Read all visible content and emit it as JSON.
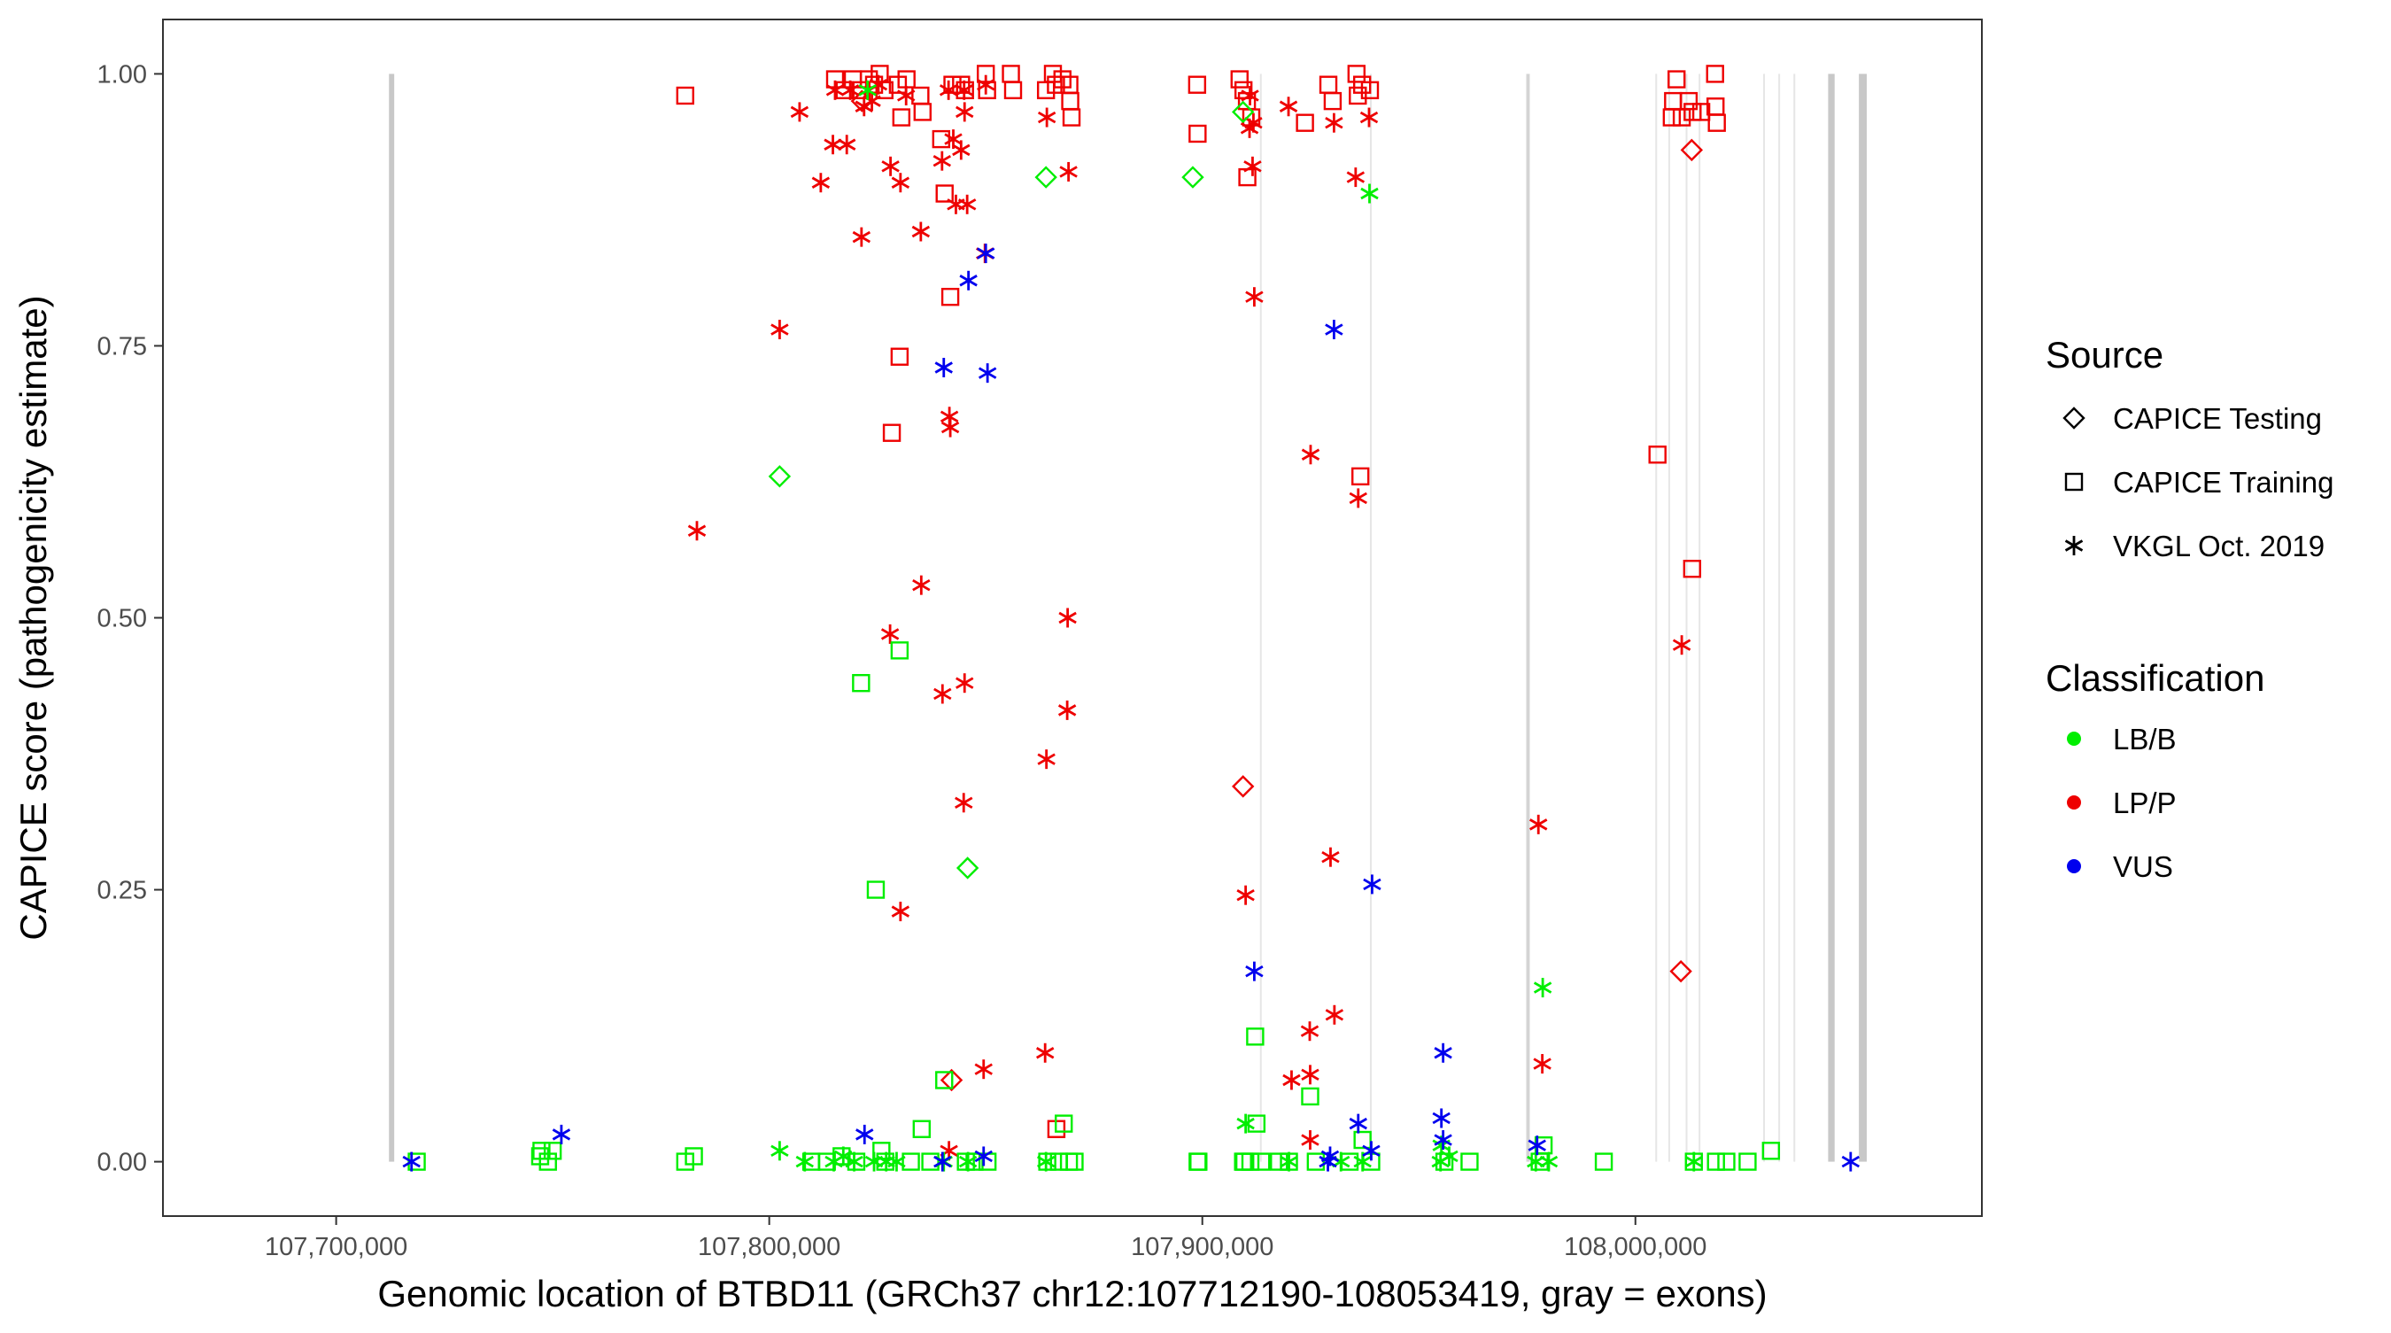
{
  "chart_data": {
    "type": "scatter",
    "xlabel": "Genomic location of BTBD11 (GRCh37 chr12:107712190-108053419, gray = exons)",
    "ylabel": "CAPICE score (pathogenicity estimate)",
    "xlim": [
      107660000,
      108080000
    ],
    "ylim": [
      -0.05,
      1.05
    ],
    "x_ticks": [
      107700000,
      107800000,
      107900000,
      108000000
    ],
    "x_tick_labels": [
      "107,700,000",
      "107,800,000",
      "107,900,000",
      "108,000,000"
    ],
    "y_ticks": [
      0,
      0.25,
      0.5,
      0.75,
      1.0
    ],
    "y_tick_labels": [
      "0.00",
      "0.25",
      "0.50",
      "0.75",
      "1.00"
    ],
    "grid": false,
    "legend_placement": "right",
    "exons": [
      {
        "start": 107712190,
        "end": 107713400,
        "shade": "dark"
      },
      {
        "start": 107913300,
        "end": 107913500,
        "shade": "light"
      },
      {
        "start": 107938700,
        "end": 107938900,
        "shade": "light"
      },
      {
        "start": 107974800,
        "end": 107975600,
        "shade": "mid"
      },
      {
        "start": 108004600,
        "end": 108004800,
        "shade": "light"
      },
      {
        "start": 108007600,
        "end": 108007800,
        "shade": "light"
      },
      {
        "start": 108011600,
        "end": 108011800,
        "shade": "light"
      },
      {
        "start": 108014600,
        "end": 108014800,
        "shade": "light"
      },
      {
        "start": 108029500,
        "end": 108029700,
        "shade": "light"
      },
      {
        "start": 108033000,
        "end": 108033200,
        "shade": "light"
      },
      {
        "start": 108036500,
        "end": 108036700,
        "shade": "light"
      },
      {
        "start": 108044500,
        "end": 108046000,
        "shade": "dark"
      },
      {
        "start": 108051600,
        "end": 108053419,
        "shade": "dark"
      }
    ],
    "legend": {
      "source_title": "Source",
      "source_items": [
        {
          "label": "CAPICE Testing",
          "shape": "diamond"
        },
        {
          "label": "CAPICE Training",
          "shape": "square"
        },
        {
          "label": "VKGL Oct. 2019",
          "shape": "star"
        }
      ],
      "class_title": "Classification",
      "class_items": [
        {
          "label": "LB/B",
          "color": "#00ee00"
        },
        {
          "label": "LP/P",
          "color": "#ee0000"
        },
        {
          "label": "VUS",
          "color": "#0000ee"
        }
      ]
    },
    "series": [
      {
        "classification": "LP/P",
        "source": "CAPICE Training",
        "color": "#ee0000",
        "shape": "square",
        "points": [
          [
            107780600,
            0.98
          ],
          [
            107815200,
            0.995
          ],
          [
            107817400,
            0.985
          ],
          [
            107819300,
            0.995
          ],
          [
            107821300,
            0.985
          ],
          [
            107823000,
            0.995
          ],
          [
            107824200,
            0.99
          ],
          [
            107825500,
            1.0
          ],
          [
            107826600,
            0.985
          ],
          [
            107829700,
            0.99
          ],
          [
            107830500,
            0.96
          ],
          [
            107831700,
            0.995
          ],
          [
            107834900,
            0.98
          ],
          [
            107835400,
            0.965
          ],
          [
            107839700,
            0.94
          ],
          [
            107840500,
            0.89
          ],
          [
            107841800,
            0.795
          ],
          [
            107842300,
            0.99
          ],
          [
            107844300,
            0.99
          ],
          [
            107845200,
            0.985
          ],
          [
            107850000,
            1.0
          ],
          [
            107850300,
            0.985
          ],
          [
            107855800,
            1.0
          ],
          [
            107856300,
            0.985
          ],
          [
            107863900,
            0.985
          ],
          [
            107865500,
            1.0
          ],
          [
            107866200,
            0.99
          ],
          [
            107867700,
            0.995
          ],
          [
            107869300,
            0.99
          ],
          [
            107869500,
            0.975
          ],
          [
            107869800,
            0.96
          ],
          [
            107898800,
            0.99
          ],
          [
            107898900,
            0.945
          ],
          [
            107908600,
            0.995
          ],
          [
            107909500,
            0.985
          ],
          [
            107910300,
            0.975
          ],
          [
            107910400,
            0.905
          ],
          [
            107911300,
            0.96
          ],
          [
            107923700,
            0.955
          ],
          [
            107929100,
            0.99
          ],
          [
            107930100,
            0.975
          ],
          [
            107935600,
            1.0
          ],
          [
            107935900,
            0.98
          ],
          [
            107936900,
            0.99
          ],
          [
            107938700,
            0.985
          ],
          [
            108008400,
            0.96
          ],
          [
            108008700,
            0.975
          ],
          [
            108009500,
            0.995
          ],
          [
            108010700,
            0.96
          ],
          [
            108012300,
            0.975
          ],
          [
            108013200,
            0.965
          ],
          [
            108015200,
            0.965
          ],
          [
            108018400,
            1.0
          ],
          [
            108018500,
            0.97
          ],
          [
            108018800,
            0.955
          ],
          [
            107828300,
            0.67
          ],
          [
            107830100,
            0.74
          ],
          [
            107936500,
            0.63
          ],
          [
            108005100,
            0.65
          ],
          [
            108013100,
            0.545
          ],
          [
            107866300,
            0.03
          ]
        ]
      },
      {
        "classification": "LP/P",
        "source": "CAPICE Testing",
        "color": "#ee0000",
        "shape": "diamond",
        "points": [
          [
            107821400,
            0.975
          ],
          [
            107909400,
            0.345
          ],
          [
            108013000,
            0.93
          ],
          [
            108010500,
            0.175
          ],
          [
            107842100,
            0.075
          ]
        ]
      },
      {
        "classification": "LP/P",
        "source": "VKGL Oct. 2019",
        "color": "#ee0000",
        "shape": "star",
        "points": [
          [
            107815200,
            0.985
          ],
          [
            107818700,
            0.985
          ],
          [
            107821900,
            0.97
          ],
          [
            107823700,
            0.975
          ],
          [
            107825200,
            0.99
          ],
          [
            107831600,
            0.98
          ],
          [
            107841400,
            0.985
          ],
          [
            107845000,
            0.985
          ],
          [
            107850000,
            0.99
          ],
          [
            107807000,
            0.965
          ],
          [
            107845100,
            0.965
          ],
          [
            107864100,
            0.96
          ],
          [
            107910900,
            0.95
          ],
          [
            107911800,
            0.955
          ],
          [
            107919900,
            0.97
          ],
          [
            107930400,
            0.955
          ],
          [
            107938500,
            0.96
          ],
          [
            107911000,
            0.98
          ],
          [
            107842500,
            0.94
          ],
          [
            107814700,
            0.935
          ],
          [
            107817900,
            0.935
          ],
          [
            107828000,
            0.915
          ],
          [
            107839900,
            0.92
          ],
          [
            107844300,
            0.93
          ],
          [
            107811900,
            0.9
          ],
          [
            107830300,
            0.9
          ],
          [
            107869100,
            0.91
          ],
          [
            107911600,
            0.915
          ],
          [
            107935400,
            0.905
          ],
          [
            107843100,
            0.88
          ],
          [
            107845700,
            0.88
          ],
          [
            107821300,
            0.85
          ],
          [
            107835000,
            0.855
          ],
          [
            107849800,
            0.835
          ],
          [
            107912000,
            0.795
          ],
          [
            107802400,
            0.765
          ],
          [
            107841600,
            0.685
          ],
          [
            107841800,
            0.675
          ],
          [
            107925000,
            0.65
          ],
          [
            107936000,
            0.61
          ],
          [
            107783300,
            0.58
          ],
          [
            107835100,
            0.53
          ],
          [
            107868900,
            0.5
          ],
          [
            107827900,
            0.485
          ],
          [
            107845100,
            0.44
          ],
          [
            107840000,
            0.43
          ],
          [
            107868800,
            0.415
          ],
          [
            108010700,
            0.475
          ],
          [
            107844900,
            0.33
          ],
          [
            107864000,
            0.37
          ],
          [
            107977600,
            0.31
          ],
          [
            107929600,
            0.28
          ],
          [
            107910000,
            0.245
          ],
          [
            107830300,
            0.23
          ],
          [
            107930500,
            0.135
          ],
          [
            107924800,
            0.12
          ],
          [
            107978500,
            0.09
          ],
          [
            107863700,
            0.1
          ],
          [
            107849500,
            0.085
          ],
          [
            107920600,
            0.075
          ],
          [
            107924900,
            0.08
          ],
          [
            107924900,
            0.02
          ],
          [
            107841500,
            0.01
          ]
        ]
      },
      {
        "classification": "LB/B",
        "source": "CAPICE Training",
        "color": "#00ee00",
        "shape": "square",
        "points": [
          [
            107718600,
            0.0
          ],
          [
            107747100,
            0.005
          ],
          [
            107747400,
            0.01
          ],
          [
            107748900,
            0.0
          ],
          [
            107750000,
            0.01
          ],
          [
            107780600,
            0.0
          ],
          [
            107782600,
            0.005
          ],
          [
            107809700,
            0.0
          ],
          [
            107813300,
            0.0
          ],
          [
            107816700,
            0.005
          ],
          [
            107820100,
            0.0
          ],
          [
            107821200,
            0.44
          ],
          [
            107824600,
            0.25
          ],
          [
            107825900,
            0.01
          ],
          [
            107826800,
            0.0
          ],
          [
            107830100,
            0.47
          ],
          [
            107832700,
            0.0
          ],
          [
            107835200,
            0.03
          ],
          [
            107837200,
            0.0
          ],
          [
            107840400,
            0.075
          ],
          [
            107845400,
            0.0
          ],
          [
            107847400,
            0.0
          ],
          [
            107850400,
            0.0
          ],
          [
            107864200,
            0.0
          ],
          [
            107866900,
            0.0
          ],
          [
            107868000,
            0.035
          ],
          [
            107869200,
            0.0
          ],
          [
            107870500,
            0.0
          ],
          [
            107898900,
            0.0
          ],
          [
            107899100,
            0.0
          ],
          [
            107909400,
            0.0
          ],
          [
            107909700,
            0.0
          ],
          [
            107911100,
            0.0
          ],
          [
            107912200,
            0.115
          ],
          [
            107912500,
            0.035
          ],
          [
            107913600,
            0.0
          ],
          [
            107917700,
            0.0
          ],
          [
            107920000,
            0.0
          ],
          [
            107924900,
            0.06
          ],
          [
            107926200,
            0.0
          ],
          [
            107934000,
            0.0
          ],
          [
            107937000,
            0.02
          ],
          [
            107939000,
            0.0
          ],
          [
            107955900,
            0.0
          ],
          [
            107961700,
            0.0
          ],
          [
            107977900,
            0.0
          ],
          [
            107978800,
            0.015
          ],
          [
            107992700,
            0.0
          ],
          [
            108013500,
            0.0
          ],
          [
            108018600,
            0.0
          ],
          [
            108021000,
            0.0
          ],
          [
            108025900,
            0.0
          ],
          [
            108031300,
            0.01
          ]
        ]
      },
      {
        "classification": "LB/B",
        "source": "CAPICE Testing",
        "color": "#00ee00",
        "shape": "diamond",
        "points": [
          [
            107802400,
            0.63
          ],
          [
            107845800,
            0.27
          ],
          [
            107863900,
            0.905
          ],
          [
            107897800,
            0.905
          ],
          [
            107909400,
            0.965
          ]
        ]
      },
      {
        "classification": "LB/B",
        "source": "VKGL Oct. 2019",
        "color": "#00ee00",
        "shape": "star",
        "points": [
          [
            107802400,
            0.01
          ],
          [
            107808200,
            0.0
          ],
          [
            107814900,
            0.0
          ],
          [
            107817100,
            0.005
          ],
          [
            107819600,
            0.0
          ],
          [
            107824200,
            0.0
          ],
          [
            107827000,
            0.0
          ],
          [
            107829400,
            0.0
          ],
          [
            107840300,
            0.0
          ],
          [
            107845900,
            0.0
          ],
          [
            107863900,
            0.0
          ],
          [
            107910000,
            0.035
          ],
          [
            107920000,
            0.0
          ],
          [
            107932000,
            0.0
          ],
          [
            107937000,
            0.0
          ],
          [
            107938600,
            0.89
          ],
          [
            107955000,
            0.0
          ],
          [
            107955200,
            0.015
          ],
          [
            107957000,
            0.005
          ],
          [
            107977000,
            0.0
          ],
          [
            107978600,
            0.16
          ],
          [
            107980000,
            0.0
          ],
          [
            108013500,
            0.0
          ],
          [
            107822700,
            0.985
          ]
        ]
      },
      {
        "classification": "VUS",
        "source": "VKGL Oct. 2019",
        "color": "#0000ee",
        "shape": "star",
        "points": [
          [
            107717400,
            0.0
          ],
          [
            107752000,
            0.025
          ],
          [
            107822000,
            0.025
          ],
          [
            107840300,
            0.73
          ],
          [
            107846000,
            0.81
          ],
          [
            107850000,
            0.835
          ],
          [
            107850400,
            0.725
          ],
          [
            107912000,
            0.175
          ],
          [
            107930400,
            0.765
          ],
          [
            107939200,
            0.255
          ],
          [
            107936000,
            0.035
          ],
          [
            107955600,
            0.1
          ],
          [
            107955200,
            0.04
          ],
          [
            107977300,
            0.015
          ],
          [
            108049700,
            0.0
          ],
          [
            107840000,
            0.0
          ],
          [
            107849500,
            0.005
          ],
          [
            107929500,
            0.005
          ],
          [
            107939000,
            0.01
          ],
          [
            107955600,
            0.02
          ],
          [
            107929000,
            0.0
          ]
        ]
      }
    ]
  }
}
